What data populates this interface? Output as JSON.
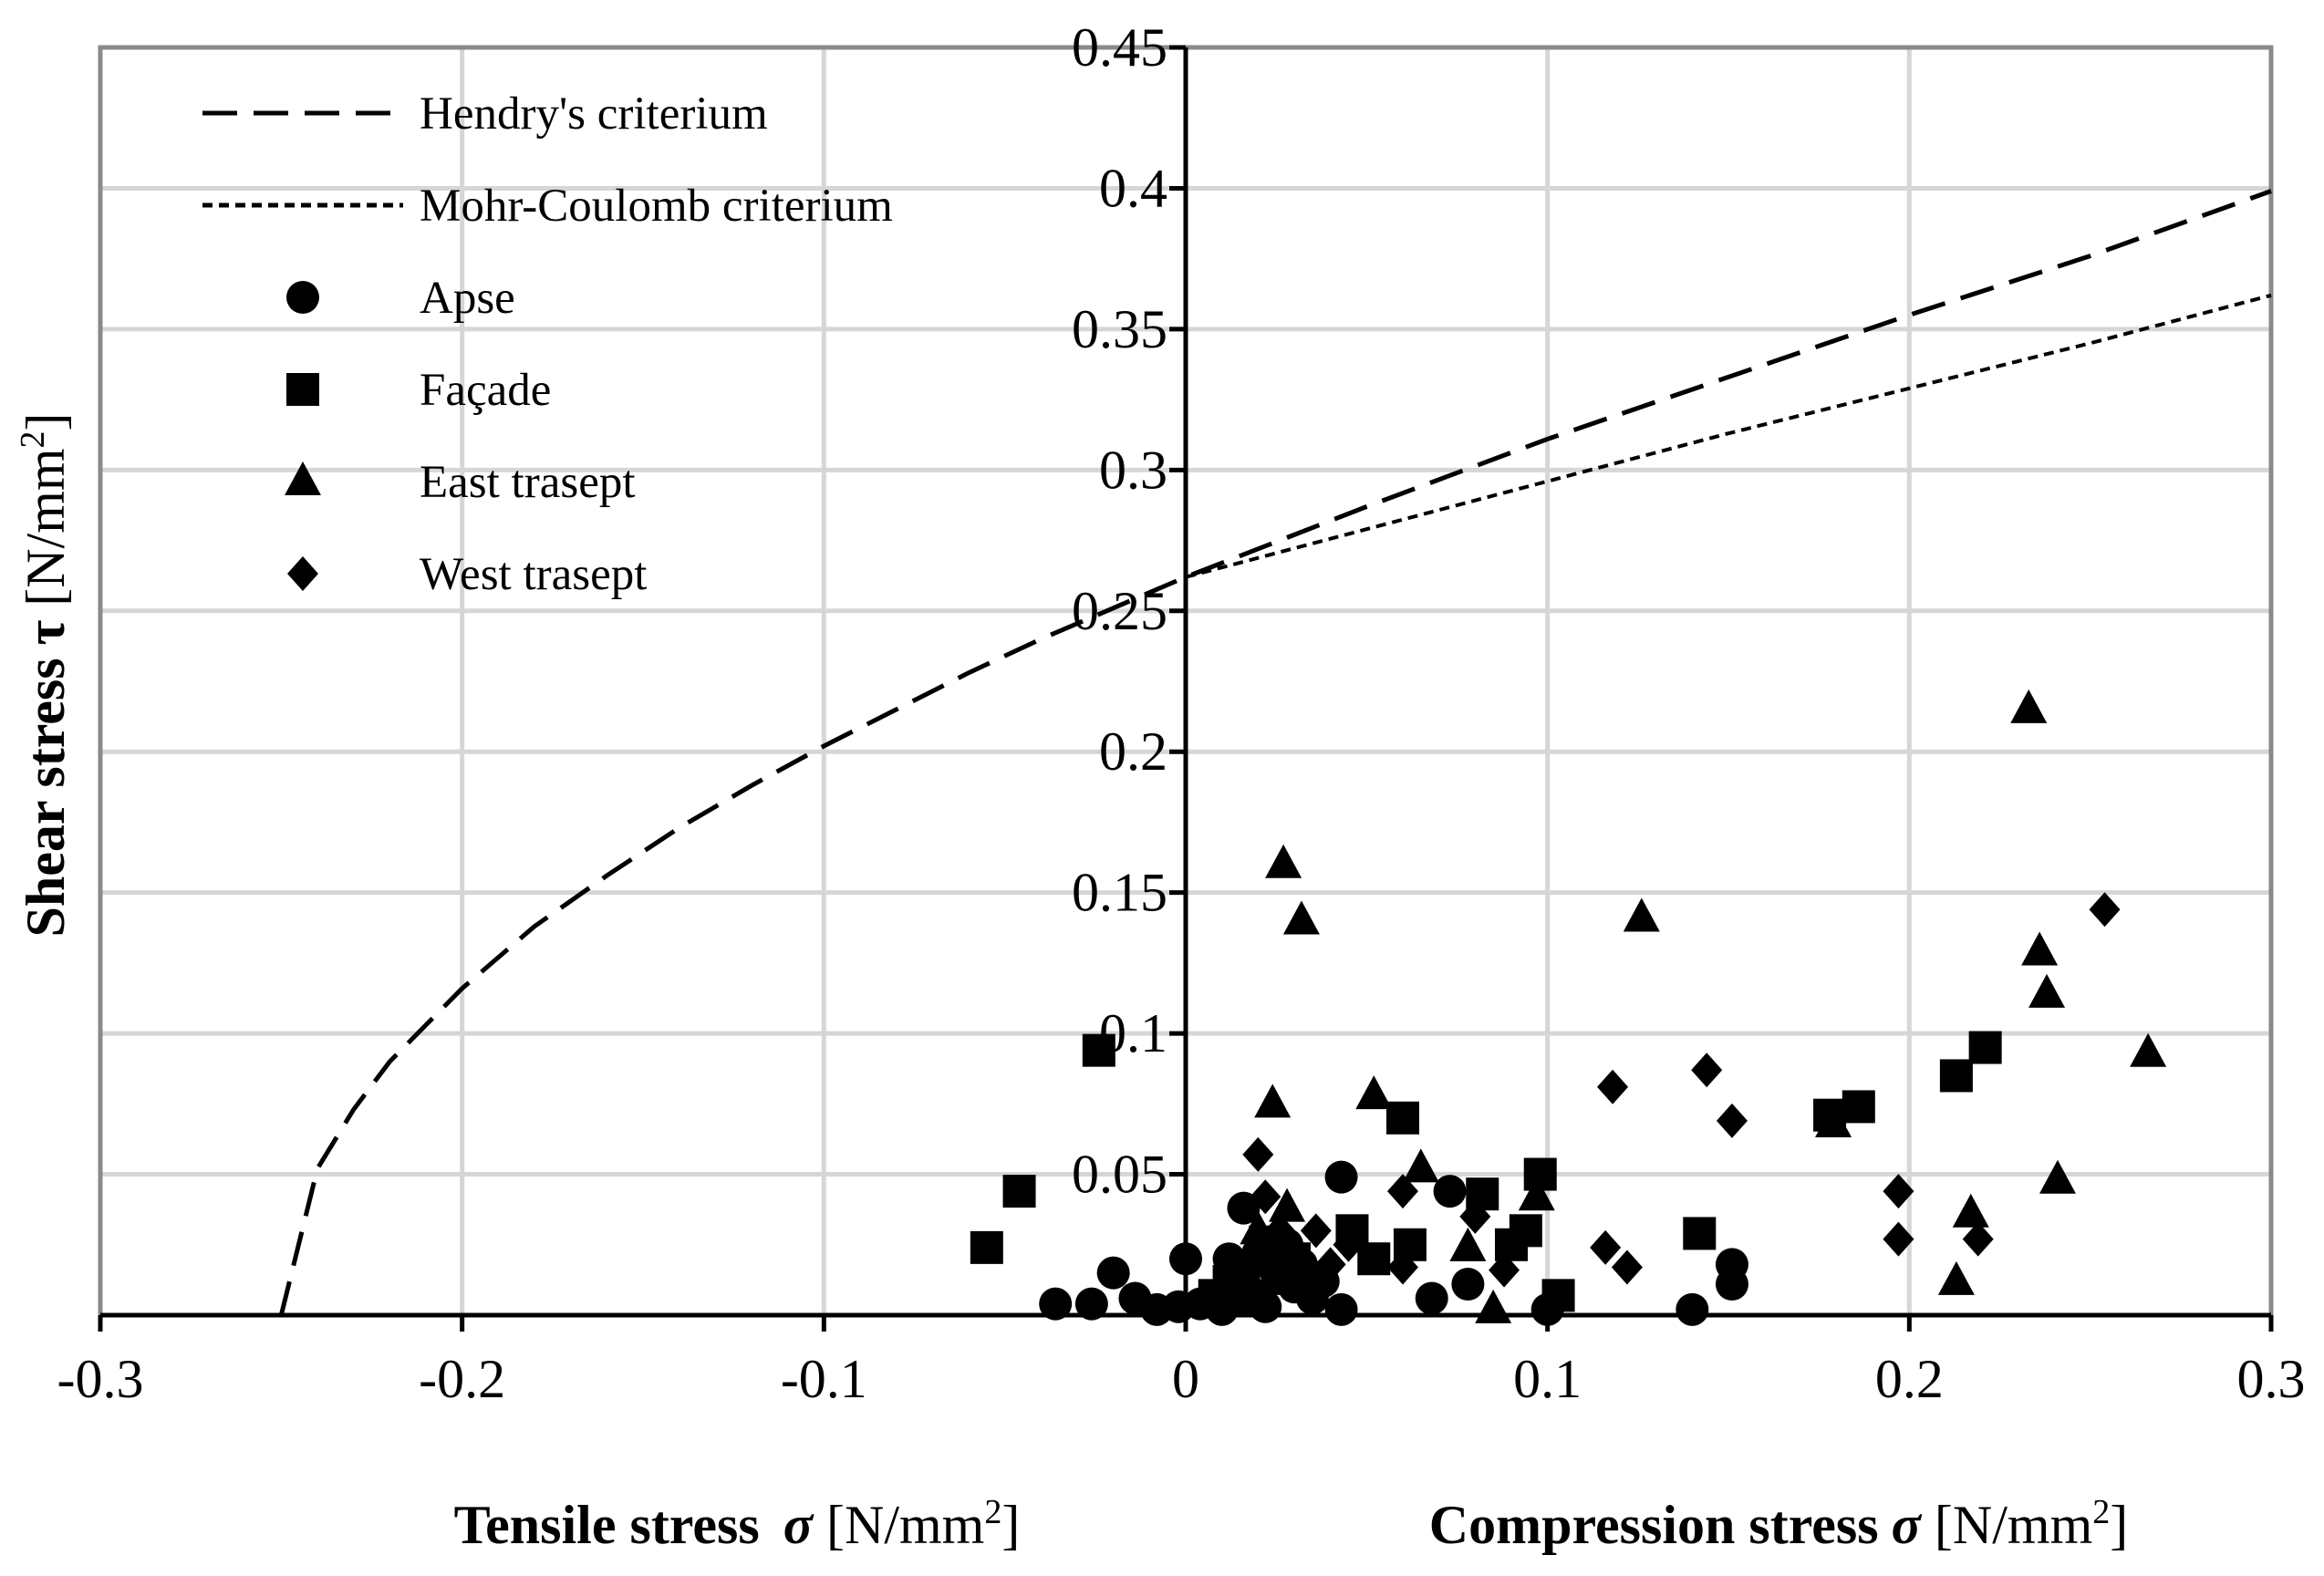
{
  "chart_data": {
    "type": "scatter",
    "title": "",
    "xlabel_tensile": {
      "bold": "Tensile stress",
      "symbol": "σ",
      "unit_prefix": " [N/mm",
      "unit_sup": "2",
      "unit_suffix": "]"
    },
    "xlabel_compression": {
      "bold": "Compression stress",
      "symbol": "σ",
      "unit_prefix": " [N/mm",
      "unit_sup": "2",
      "unit_suffix": "]"
    },
    "ylabel": {
      "bold": "Shear stress",
      "symbol": "τ",
      "unit_prefix": " [N/mm",
      "unit_sup": "2",
      "unit_suffix": "]"
    },
    "xlim": [
      -0.3,
      0.3
    ],
    "ylim": [
      0,
      0.45
    ],
    "x_ticks": [
      -0.3,
      -0.2,
      -0.1,
      0,
      0.1,
      0.2,
      0.3
    ],
    "x_tick_labels": [
      "-0.3",
      "-0.2",
      "-0.1",
      "0",
      "0.1",
      "0.2",
      "0.3"
    ],
    "y_ticks": [
      0.05,
      0.1,
      0.15,
      0.2,
      0.25,
      0.3,
      0.35,
      0.4,
      0.45
    ],
    "y_tick_labels": [
      "0.05",
      "0.1",
      "0.15",
      "0.2",
      "0.25",
      "0.3",
      "0.35",
      "0.4",
      "0.45"
    ],
    "grid": true,
    "legend_position": "top-left",
    "curves": [
      {
        "name": "Hendry's criterium",
        "style": "long-dash",
        "x": [
          -0.25,
          -0.24,
          -0.23,
          -0.22,
          -0.2,
          -0.18,
          -0.16,
          -0.14,
          -0.12,
          -0.1,
          -0.08,
          -0.06,
          -0.04,
          -0.02,
          0,
          0.05,
          0.1,
          0.15,
          0.2,
          0.25,
          0.3
        ],
        "y": [
          0,
          0.052,
          0.073,
          0.09,
          0.116,
          0.138,
          0.156,
          0.173,
          0.188,
          0.202,
          0.215,
          0.228,
          0.24,
          0.251,
          0.262,
          0.287,
          0.311,
          0.333,
          0.355,
          0.376,
          0.399
        ]
      },
      {
        "name": "Mohr-Coulomb criterium",
        "style": "short-dash",
        "x": [
          0,
          0.05,
          0.1,
          0.15,
          0.2,
          0.25,
          0.3
        ],
        "y": [
          0.262,
          0.279,
          0.296,
          0.313,
          0.329,
          0.345,
          0.362
        ]
      }
    ],
    "series": [
      {
        "name": "Apse",
        "marker": "circle",
        "points": [
          [
            -0.036,
            0.004
          ],
          [
            -0.026,
            0.004
          ],
          [
            -0.02,
            0.015
          ],
          [
            -0.014,
            0.006
          ],
          [
            -0.008,
            0.002
          ],
          [
            -0.002,
            0.003
          ],
          [
            0,
            0.02
          ],
          [
            0.004,
            0.004
          ],
          [
            0.008,
            0.005
          ],
          [
            0.01,
            0.002
          ],
          [
            0.012,
            0.02
          ],
          [
            0.014,
            0.012
          ],
          [
            0.016,
            0.038
          ],
          [
            0.018,
            0.008
          ],
          [
            0.02,
            0.022
          ],
          [
            0.022,
            0.003
          ],
          [
            0.025,
            0.015
          ],
          [
            0.028,
            0.025
          ],
          [
            0.03,
            0.01
          ],
          [
            0.032,
            0.018
          ],
          [
            0.035,
            0.006
          ],
          [
            0.038,
            0.012
          ],
          [
            0.043,
            0.049
          ],
          [
            0.043,
            0.002
          ],
          [
            0.068,
            0.006
          ],
          [
            0.073,
            0.044
          ],
          [
            0.078,
            0.011
          ],
          [
            0.1,
            0.002
          ],
          [
            0.14,
            0.002
          ],
          [
            0.151,
            0.011
          ],
          [
            0.151,
            0.018
          ]
        ]
      },
      {
        "name": "Façade",
        "marker": "square",
        "points": [
          [
            -0.055,
            0.024
          ],
          [
            -0.046,
            0.044
          ],
          [
            -0.024,
            0.094
          ],
          [
            0.008,
            0.007
          ],
          [
            0.012,
            0.012
          ],
          [
            0.016,
            0.016
          ],
          [
            0.018,
            0.006
          ],
          [
            0.022,
            0.026
          ],
          [
            0.026,
            0.013
          ],
          [
            0.03,
            0.02
          ],
          [
            0.046,
            0.03
          ],
          [
            0.052,
            0.02
          ],
          [
            0.06,
            0.07
          ],
          [
            0.062,
            0.025
          ],
          [
            0.082,
            0.043
          ],
          [
            0.09,
            0.025
          ],
          [
            0.094,
            0.03
          ],
          [
            0.098,
            0.05
          ],
          [
            0.103,
            0.007
          ],
          [
            0.142,
            0.029
          ],
          [
            0.178,
            0.071
          ],
          [
            0.186,
            0.074
          ],
          [
            0.213,
            0.085
          ],
          [
            0.221,
            0.095
          ]
        ]
      },
      {
        "name": "East trasept",
        "marker": "triangle",
        "points": [
          [
            0.012,
            0.01
          ],
          [
            0.02,
            0.03
          ],
          [
            0.024,
            0.075
          ],
          [
            0.027,
            0.16
          ],
          [
            0.028,
            0.038
          ],
          [
            0.032,
            0.14
          ],
          [
            0.052,
            0.078
          ],
          [
            0.065,
            0.052
          ],
          [
            0.078,
            0.024
          ],
          [
            0.085,
            0.002
          ],
          [
            0.097,
            0.042
          ],
          [
            0.126,
            0.141
          ],
          [
            0.179,
            0.068
          ],
          [
            0.213,
            0.012
          ],
          [
            0.217,
            0.036
          ],
          [
            0.233,
            0.215
          ],
          [
            0.236,
            0.129
          ],
          [
            0.238,
            0.114
          ],
          [
            0.241,
            0.048
          ],
          [
            0.266,
            0.093
          ]
        ]
      },
      {
        "name": "West trasept",
        "marker": "diamond",
        "points": [
          [
            0.016,
            0.015
          ],
          [
            0.02,
            0.057
          ],
          [
            0.022,
            0.042
          ],
          [
            0.026,
            0.03
          ],
          [
            0.028,
            0.022
          ],
          [
            0.03,
            0.012
          ],
          [
            0.036,
            0.03
          ],
          [
            0.04,
            0.018
          ],
          [
            0.045,
            0.025
          ],
          [
            0.06,
            0.044
          ],
          [
            0.06,
            0.017
          ],
          [
            0.08,
            0.035
          ],
          [
            0.088,
            0.016
          ],
          [
            0.116,
            0.024
          ],
          [
            0.118,
            0.081
          ],
          [
            0.122,
            0.017
          ],
          [
            0.144,
            0.087
          ],
          [
            0.151,
            0.069
          ],
          [
            0.197,
            0.044
          ],
          [
            0.197,
            0.027
          ],
          [
            0.219,
            0.027
          ],
          [
            0.254,
            0.144
          ]
        ]
      }
    ]
  }
}
